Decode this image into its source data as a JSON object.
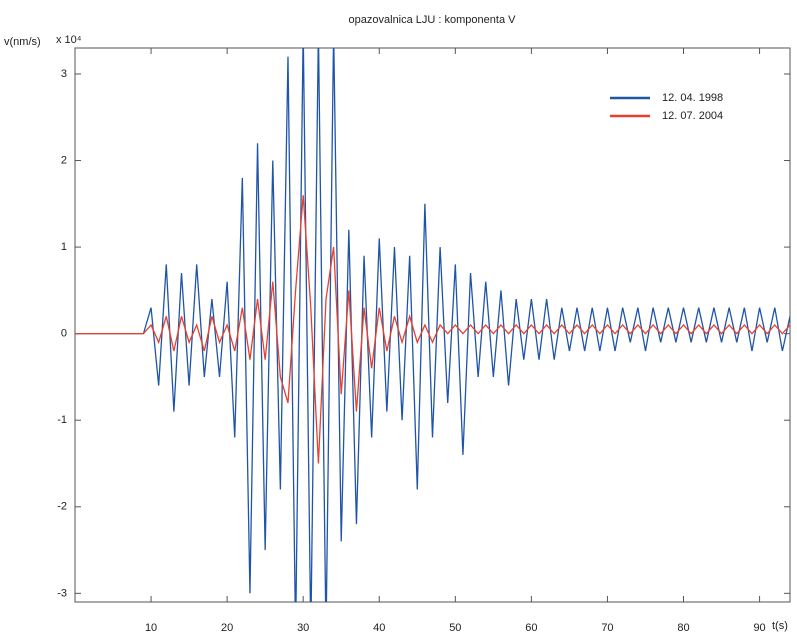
{
  "chart_data": {
    "type": "line",
    "title": "opazovalnica LJU : komponenta V",
    "y_label": "v(nm/s)",
    "y_multiplier": "x 10⁴",
    "x_label": "t(s)",
    "x": [
      0,
      1,
      2,
      3,
      4,
      5,
      6,
      7,
      8,
      9,
      10,
      11,
      12,
      13,
      14,
      15,
      16,
      17,
      18,
      19,
      20,
      21,
      22,
      23,
      24,
      25,
      26,
      27,
      28,
      29,
      30,
      31,
      32,
      33,
      34,
      35,
      36,
      37,
      38,
      39,
      40,
      41,
      42,
      43,
      44,
      45,
      46,
      47,
      48,
      49,
      50,
      51,
      52,
      53,
      54,
      55,
      56,
      57,
      58,
      59,
      60,
      61,
      62,
      63,
      64,
      65,
      66,
      67,
      68,
      69,
      70,
      71,
      72,
      73,
      74,
      75,
      76,
      77,
      78,
      79,
      80,
      81,
      82,
      83,
      84,
      85,
      86,
      87,
      88,
      89,
      90,
      91,
      92,
      93,
      94
    ],
    "series": [
      {
        "name": "12. 04. 1998",
        "color": "#1f55a8",
        "values": [
          0,
          0,
          0,
          0,
          0,
          0,
          0,
          0,
          0,
          0,
          0.3,
          -0.6,
          0.8,
          -0.9,
          0.7,
          -0.6,
          0.8,
          -0.5,
          0.4,
          -0.5,
          0.6,
          -1.2,
          1.8,
          -3.0,
          2.2,
          -2.5,
          2.0,
          -1.8,
          3.2,
          -3.5,
          3.5,
          -3.5,
          3.5,
          -3.5,
          3.5,
          -2.4,
          1.2,
          -2.2,
          0.9,
          -1.2,
          1.1,
          -0.9,
          1.0,
          -1.0,
          0.9,
          -1.8,
          1.5,
          -1.2,
          1.0,
          -0.8,
          0.8,
          -1.4,
          0.7,
          -0.5,
          0.6,
          -0.5,
          0.5,
          -0.6,
          0.4,
          -0.3,
          0.4,
          -0.3,
          0.4,
          -0.3,
          0.3,
          -0.2,
          0.3,
          -0.2,
          0.3,
          -0.2,
          0.3,
          -0.2,
          0.3,
          -0.1,
          0.3,
          -0.2,
          0.3,
          -0.1,
          0.3,
          -0.1,
          0.3,
          -0.1,
          0.3,
          -0.1,
          0.3,
          -0.1,
          0.3,
          -0.1,
          0.3,
          -0.2,
          0.3,
          -0.1,
          0.3,
          -0.2,
          0.2
        ]
      },
      {
        "name": "12. 07. 2004",
        "color": "#e8402c",
        "values": [
          0,
          0,
          0,
          0,
          0,
          0,
          0,
          0,
          0,
          0,
          0.1,
          -0.1,
          0.2,
          -0.2,
          0.2,
          -0.1,
          0.1,
          -0.2,
          0.2,
          -0.1,
          0.1,
          -0.2,
          0.3,
          -0.3,
          0.4,
          -0.3,
          0.6,
          -0.5,
          -0.8,
          0.5,
          1.6,
          0.3,
          -1.5,
          0.4,
          1.0,
          -0.7,
          0.5,
          -0.9,
          0.3,
          -0.4,
          0.3,
          -0.2,
          0.2,
          -0.1,
          0.2,
          -0.1,
          0.1,
          -0.1,
          0.1,
          0,
          0.1,
          0,
          0.1,
          0,
          0.1,
          0,
          0.1,
          0,
          0.1,
          0,
          0.1,
          0,
          0.1,
          0,
          0.1,
          0,
          0.1,
          0,
          0.1,
          0,
          0.1,
          0,
          0.1,
          0,
          0.1,
          0,
          0.1,
          0,
          0.1,
          0,
          0.1,
          0,
          0.1,
          0,
          0.1,
          0,
          0.1,
          0,
          0.1,
          0,
          0.1,
          0,
          0.1,
          0,
          0.1
        ]
      }
    ],
    "xlim": [
      0,
      94
    ],
    "ylim": [
      -3.1,
      3.3
    ],
    "xticks": [
      10,
      20,
      30,
      40,
      50,
      60,
      70,
      80,
      90
    ],
    "yticks": [
      -3,
      -2,
      -1,
      0,
      1,
      2,
      3
    ],
    "legend": "upper right"
  }
}
